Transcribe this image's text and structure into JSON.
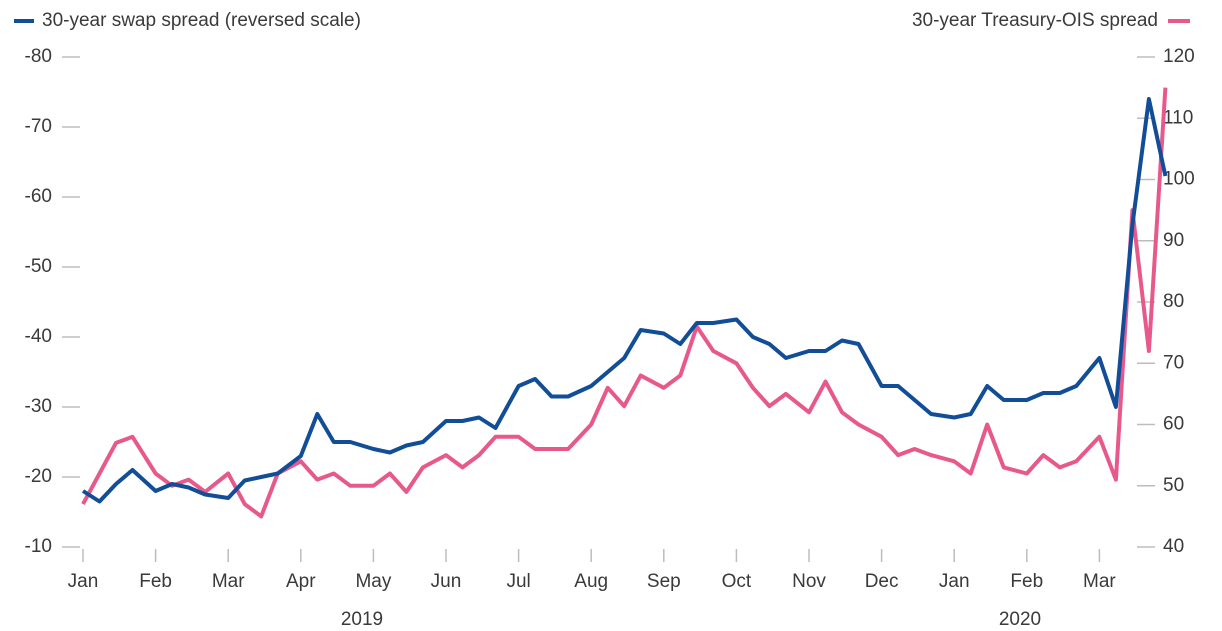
{
  "chart_data": {
    "type": "line",
    "xticks": [
      {
        "value": "2019-01",
        "label": "Jan"
      },
      {
        "value": "2019-02",
        "label": "Feb"
      },
      {
        "value": "2019-03",
        "label": "Mar"
      },
      {
        "value": "2019-04",
        "label": "Apr"
      },
      {
        "value": "2019-05",
        "label": "May"
      },
      {
        "value": "2019-06",
        "label": "Jun"
      },
      {
        "value": "2019-07",
        "label": "Jul"
      },
      {
        "value": "2019-08",
        "label": "Aug"
      },
      {
        "value": "2019-09",
        "label": "Sep"
      },
      {
        "value": "2019-10",
        "label": "Oct"
      },
      {
        "value": "2019-11",
        "label": "Nov"
      },
      {
        "value": "2019-12",
        "label": "Dec"
      },
      {
        "value": "2020-01",
        "label": "Jan"
      },
      {
        "value": "2020-02",
        "label": "Feb"
      },
      {
        "value": "2020-03",
        "label": "Mar"
      }
    ],
    "years": [
      "2019",
      "2020"
    ],
    "x": [
      "2019-01",
      "2019-01",
      "2019-01",
      "2019-01",
      "2019-02",
      "2019-02",
      "2019-02",
      "2019-02",
      "2019-03",
      "2019-03",
      "2019-03",
      "2019-03",
      "2019-04",
      "2019-04",
      "2019-04",
      "2019-04",
      "2019-05",
      "2019-05",
      "2019-05",
      "2019-05",
      "2019-06",
      "2019-06",
      "2019-06",
      "2019-06",
      "2019-07",
      "2019-07",
      "2019-07",
      "2019-07",
      "2019-08",
      "2019-08",
      "2019-08",
      "2019-08",
      "2019-09",
      "2019-09",
      "2019-09",
      "2019-09",
      "2019-10",
      "2019-10",
      "2019-10",
      "2019-10",
      "2019-11",
      "2019-11",
      "2019-11",
      "2019-11",
      "2019-12",
      "2019-12",
      "2019-12",
      "2019-12",
      "2020-01",
      "2020-01",
      "2020-01",
      "2020-01",
      "2020-02",
      "2020-02",
      "2020-02",
      "2020-02",
      "2020-03",
      "2020-03",
      "2020-03",
      "2020-03",
      "2020-03"
    ],
    "ylim": [
      -10,
      -80
    ],
    "yticks": [
      -10,
      -20,
      -30,
      -40,
      -50,
      -60,
      -70,
      -80
    ],
    "y2lim": [
      40,
      120
    ],
    "y2ticks": [
      40,
      50,
      60,
      70,
      80,
      90,
      100,
      110,
      120
    ],
    "series": [
      {
        "name": "30-year swap spread (reversed scale)",
        "color": "#124e98",
        "values": [
          -18,
          -16.5,
          -19,
          -21,
          -18,
          -19,
          -18.5,
          -17.5,
          -17,
          -19.5,
          -20,
          -20.5,
          -23,
          -29,
          -25,
          -25,
          -24,
          -23.5,
          -24.5,
          -25,
          -28,
          -28,
          -28.5,
          -27,
          -33,
          -34,
          -31.5,
          -31.5,
          -33,
          -35,
          -37,
          -41,
          -40.5,
          -39,
          -42,
          -42,
          -42.5,
          -40,
          -39,
          -37,
          -38,
          -38,
          -39.5,
          -39,
          -33,
          -33,
          -31,
          -29,
          -28.5,
          -29,
          -33,
          -31,
          -31,
          -32,
          -32,
          -33,
          -37,
          -30,
          -56,
          -74,
          -63
        ]
      },
      {
        "name": "30-year Treasury-OIS spread",
        "color": "#e8598b",
        "axis": "y2",
        "values": [
          47,
          52,
          57,
          58,
          52,
          50,
          51,
          49,
          52,
          47,
          45,
          52,
          54,
          51,
          52,
          50,
          50,
          52,
          49,
          53,
          55,
          53,
          55,
          58,
          58,
          56,
          56,
          56,
          60,
          66,
          63,
          68,
          66,
          68,
          76,
          72,
          70,
          66,
          63,
          65,
          62,
          67,
          62,
          60,
          58,
          55,
          56,
          55,
          54,
          52,
          60,
          53,
          52,
          55,
          53,
          54,
          58,
          51,
          95,
          72,
          115
        ]
      }
    ]
  }
}
